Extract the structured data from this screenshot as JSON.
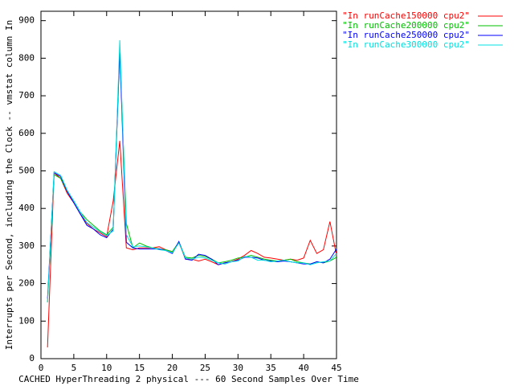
{
  "chart_data": {
    "type": "line",
    "xlabel": "CACHED HyperThreading 2 physical --- 60 Second Samples Over Time",
    "ylabel": "Interrupts per Second, including the Clock -- vmstat column In",
    "x": [
      1,
      2,
      3,
      4,
      5,
      6,
      7,
      8,
      9,
      10,
      11,
      12,
      13,
      14,
      15,
      16,
      17,
      18,
      19,
      20,
      21,
      22,
      23,
      24,
      25,
      26,
      27,
      28,
      29,
      30,
      31,
      32,
      33,
      34,
      35,
      36,
      37,
      38,
      39,
      40,
      41,
      42,
      43,
      44,
      45
    ],
    "series": [
      {
        "name": "\"In runCache150000 cpu2\"",
        "color": "#ff0000",
        "values": [
          30,
          495,
          480,
          440,
          415,
          385,
          360,
          345,
          335,
          325,
          420,
          580,
          295,
          290,
          295,
          295,
          295,
          298,
          290,
          285,
          310,
          265,
          265,
          260,
          265,
          258,
          250,
          255,
          258,
          265,
          275,
          288,
          280,
          270,
          268,
          265,
          262,
          265,
          262,
          268,
          315,
          280,
          290,
          365,
          275
        ]
      },
      {
        "name": "\"In runCache200000 cpu2\"",
        "color": "#00c000",
        "values": [
          150,
          490,
          480,
          445,
          420,
          390,
          370,
          355,
          340,
          330,
          350,
          820,
          360,
          295,
          308,
          300,
          295,
          292,
          290,
          285,
          310,
          270,
          268,
          275,
          272,
          265,
          255,
          258,
          262,
          268,
          270,
          275,
          270,
          265,
          262,
          260,
          262,
          265,
          258,
          255,
          252,
          258,
          255,
          260,
          270
        ]
      },
      {
        "name": "\"In runCache250000 cpu2\"",
        "color": "#0000ff",
        "values": [
          160,
          495,
          485,
          445,
          415,
          385,
          355,
          345,
          330,
          322,
          345,
          820,
          310,
          295,
          292,
          292,
          292,
          292,
          288,
          280,
          312,
          265,
          262,
          278,
          275,
          265,
          250,
          255,
          258,
          262,
          270,
          270,
          268,
          262,
          260,
          258,
          260,
          258,
          255,
          252,
          252,
          258,
          255,
          265,
          292
        ]
      },
      {
        "name": "\"In runCache300000 cpu2\"",
        "color": "#00e0e0",
        "values": [
          150,
          498,
          488,
          448,
          420,
          390,
          362,
          350,
          338,
          328,
          340,
          848,
          330,
          298,
          300,
          298,
          295,
          290,
          288,
          282,
          308,
          268,
          265,
          270,
          268,
          262,
          255,
          252,
          258,
          260,
          272,
          270,
          262,
          262,
          258,
          260,
          262,
          258,
          255,
          255,
          250,
          255,
          258,
          260,
          280
        ]
      }
    ],
    "xlim": [
      0,
      45
    ],
    "xticks": [
      0,
      5,
      10,
      15,
      20,
      25,
      30,
      35,
      40,
      45
    ],
    "ylim": [
      0,
      925
    ],
    "yticks": [
      0,
      100,
      200,
      300,
      400,
      500,
      600,
      700,
      800,
      900
    ],
    "legend": "top-right"
  }
}
